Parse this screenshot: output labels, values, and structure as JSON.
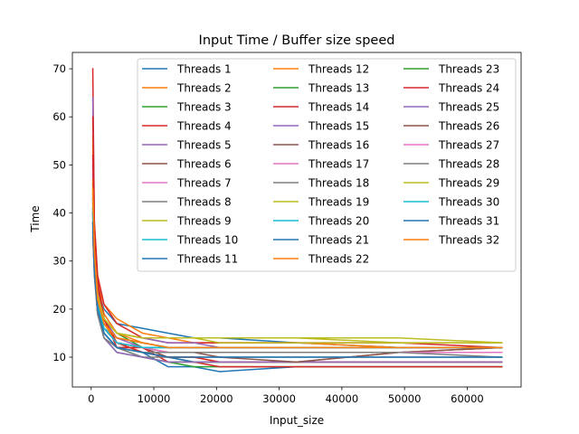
{
  "chart_data": {
    "type": "line",
    "title": "Input Time / Buffer size speed",
    "xlabel": "Input_size",
    "ylabel": "Time",
    "xlim": [
      -3000,
      68600
    ],
    "ylim": [
      3.8,
      73.4
    ],
    "xticks": [
      0,
      10000,
      20000,
      30000,
      40000,
      50000,
      60000
    ],
    "xtick_labels": [
      "0",
      "10000",
      "20000",
      "30000",
      "40000",
      "50000",
      "60000"
    ],
    "yticks": [
      10,
      20,
      30,
      40,
      50,
      60,
      70
    ],
    "ytick_labels": [
      "10",
      "20",
      "30",
      "40",
      "50",
      "60",
      "70"
    ],
    "grid": false,
    "legend_position": "top-right",
    "legend_columns": 3,
    "x": [
      256,
      512,
      1024,
      2048,
      4096,
      8192,
      12288,
      16384,
      20480,
      32768,
      49152,
      65536
    ],
    "series": [
      {
        "name": "Threads 1",
        "color": "#1f77b4",
        "values": [
          40,
          34,
          24,
          20,
          17,
          16,
          15,
          14,
          14,
          13,
          12,
          12
        ]
      },
      {
        "name": "Threads 2",
        "color": "#ff7f0e",
        "values": [
          54,
          36,
          25,
          21,
          18,
          15,
          14,
          13,
          13,
          13,
          12,
          12
        ]
      },
      {
        "name": "Threads 3",
        "color": "#2ca02c",
        "values": [
          46,
          33,
          23,
          18,
          15,
          12,
          12,
          12,
          12,
          12,
          12,
          12
        ]
      },
      {
        "name": "Threads 4",
        "color": "#d62728",
        "values": [
          70,
          38,
          27,
          21,
          17,
          14,
          13,
          13,
          13,
          13,
          13,
          12
        ]
      },
      {
        "name": "Threads 5",
        "color": "#9467bd",
        "values": [
          64,
          35,
          24,
          19,
          15,
          14,
          13,
          13,
          12,
          12,
          12,
          12
        ]
      },
      {
        "name": "Threads 6",
        "color": "#8c564b",
        "values": [
          35,
          28,
          20,
          15,
          12,
          12,
          10,
          9,
          9,
          9,
          11,
          12
        ]
      },
      {
        "name": "Threads 7",
        "color": "#e377c2",
        "values": [
          48,
          33,
          23,
          17,
          14,
          12,
          11,
          11,
          11,
          11,
          11,
          11
        ]
      },
      {
        "name": "Threads 8",
        "color": "#7f7f7f",
        "values": [
          43,
          30,
          21,
          16,
          13,
          11,
          10,
          9,
          9,
          9,
          9,
          9
        ]
      },
      {
        "name": "Threads 9",
        "color": "#bcbd22",
        "values": [
          42,
          32,
          23,
          18,
          15,
          14,
          14,
          14,
          14,
          14,
          13,
          13
        ]
      },
      {
        "name": "Threads 10",
        "color": "#17becf",
        "values": [
          41,
          30,
          21,
          16,
          14,
          13,
          12,
          12,
          12,
          12,
          12,
          12
        ]
      },
      {
        "name": "Threads 11",
        "color": "#1f77b4",
        "values": [
          38,
          30,
          20,
          16,
          13,
          11,
          8,
          8,
          7,
          8,
          8,
          8
        ]
      },
      {
        "name": "Threads 12",
        "color": "#ff7f0e",
        "values": [
          56,
          36,
          25,
          19,
          15,
          13,
          12,
          12,
          12,
          12,
          12,
          12
        ]
      },
      {
        "name": "Threads 13",
        "color": "#2ca02c",
        "values": [
          40,
          30,
          21,
          15,
          12,
          10,
          9,
          8,
          8,
          8,
          8,
          8
        ]
      },
      {
        "name": "Threads 14",
        "color": "#d62728",
        "values": [
          60,
          38,
          26,
          18,
          12,
          12,
          9,
          9,
          8,
          8,
          8,
          8
        ]
      },
      {
        "name": "Threads 15",
        "color": "#9467bd",
        "values": [
          50,
          34,
          24,
          18,
          14,
          12,
          12,
          12,
          12,
          12,
          12,
          12
        ]
      },
      {
        "name": "Threads 16",
        "color": "#8c564b",
        "values": [
          44,
          31,
          22,
          17,
          14,
          13,
          12,
          12,
          12,
          12,
          12,
          12
        ]
      },
      {
        "name": "Threads 17",
        "color": "#e377c2",
        "values": [
          42,
          30,
          21,
          16,
          13,
          12,
          11,
          11,
          11,
          11,
          11,
          11
        ]
      },
      {
        "name": "Threads 18",
        "color": "#7f7f7f",
        "values": [
          40,
          29,
          20,
          15,
          12,
          10,
          10,
          10,
          10,
          10,
          10,
          10
        ]
      },
      {
        "name": "Threads 19",
        "color": "#bcbd22",
        "values": [
          45,
          32,
          23,
          18,
          15,
          14,
          14,
          14,
          14,
          14,
          14,
          13
        ]
      },
      {
        "name": "Threads 20",
        "color": "#17becf",
        "values": [
          41,
          30,
          21,
          16,
          13,
          12,
          12,
          12,
          12,
          12,
          12,
          12
        ]
      },
      {
        "name": "Threads 21",
        "color": "#1f77b4",
        "values": [
          39,
          28,
          19,
          15,
          12,
          11,
          10,
          9,
          9,
          9,
          9,
          9
        ]
      },
      {
        "name": "Threads 22",
        "color": "#ff7f0e",
        "values": [
          47,
          33,
          23,
          17,
          13,
          11,
          10,
          10,
          9,
          9,
          9,
          9
        ]
      },
      {
        "name": "Threads 23",
        "color": "#2ca02c",
        "values": [
          38,
          28,
          19,
          14,
          11,
          10,
          9,
          9,
          9,
          9,
          9,
          9
        ]
      },
      {
        "name": "Threads 24",
        "color": "#d62728",
        "values": [
          52,
          36,
          25,
          18,
          13,
          11,
          10,
          10,
          9,
          9,
          9,
          9
        ]
      },
      {
        "name": "Threads 25",
        "color": "#9467bd",
        "values": [
          36,
          27,
          19,
          14,
          11,
          10,
          9,
          9,
          9,
          9,
          9,
          9
        ]
      },
      {
        "name": "Threads 26",
        "color": "#8c564b",
        "values": [
          43,
          31,
          22,
          16,
          13,
          12,
          11,
          11,
          10,
          9,
          11,
          12
        ]
      },
      {
        "name": "Threads 27",
        "color": "#e377c2",
        "values": [
          40,
          29,
          21,
          16,
          13,
          12,
          11,
          11,
          11,
          11,
          11,
          11
        ]
      },
      {
        "name": "Threads 28",
        "color": "#7f7f7f",
        "values": [
          37,
          27,
          19,
          14,
          12,
          11,
          11,
          11,
          11,
          11,
          11,
          10
        ]
      },
      {
        "name": "Threads 29",
        "color": "#bcbd22",
        "values": [
          44,
          32,
          23,
          18,
          15,
          14,
          14,
          14,
          13,
          13,
          13,
          13
        ]
      },
      {
        "name": "Threads 30",
        "color": "#17becf",
        "values": [
          40,
          29,
          21,
          16,
          13,
          12,
          12,
          12,
          12,
          12,
          12,
          12
        ]
      },
      {
        "name": "Threads 31",
        "color": "#1f77b4",
        "values": [
          38,
          28,
          20,
          15,
          12,
          11,
          10,
          10,
          10,
          10,
          10,
          10
        ]
      },
      {
        "name": "Threads 32",
        "color": "#ff7f0e",
        "values": [
          45,
          32,
          22,
          17,
          14,
          13,
          12,
          12,
          12,
          12,
          12,
          12
        ]
      }
    ]
  }
}
